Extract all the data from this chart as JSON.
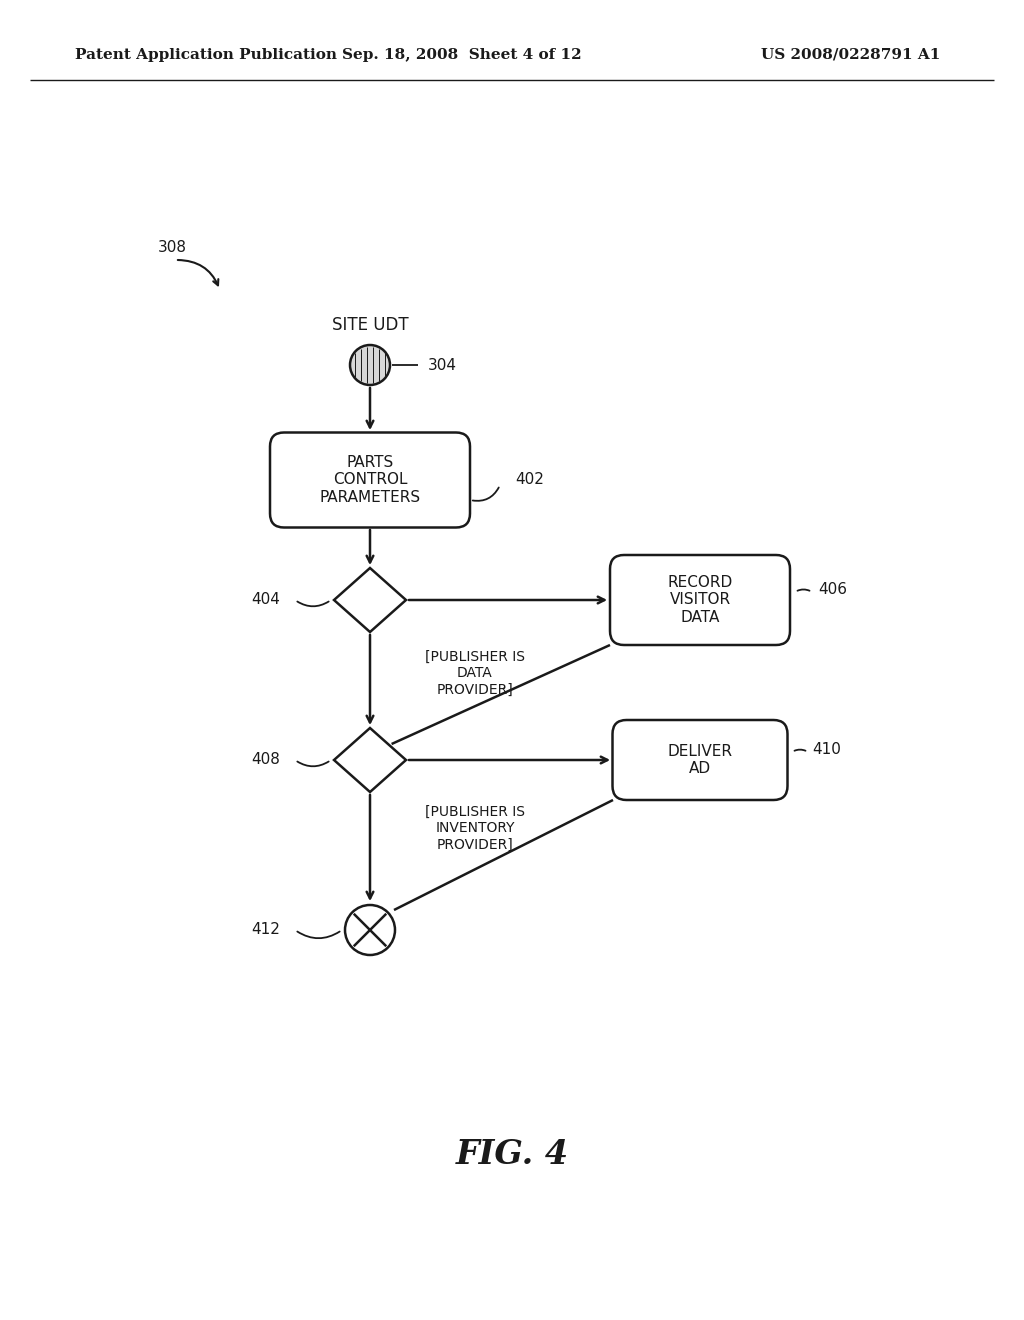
{
  "bg_color": "#ffffff",
  "header_left": "Patent Application Publication",
  "header_mid": "Sep. 18, 2008  Sheet 4 of 12",
  "header_right": "US 2008/0228791 A1",
  "fig_label": "FIG. 4",
  "label_308": "308",
  "label_304": "304",
  "label_402": "402",
  "label_404": "404",
  "label_406": "406",
  "label_408": "408",
  "label_410": "410",
  "label_412": "412",
  "site_udt_text": "SITE UDT",
  "parts_control_text": "PARTS\nCONTROL\nPARAMETERS",
  "record_visitor_text": "RECORD\nVISITOR\nDATA",
  "deliver_ad_text": "DELIVER\nAD",
  "publisher_data_text": "[PUBLISHER IS\nDATA\nPROVIDER]",
  "publisher_inv_text": "[PUBLISHER IS\nINVENTORY\nPROVIDER]",
  "line_color": "#1a1a1a",
  "text_color": "#1a1a1a"
}
